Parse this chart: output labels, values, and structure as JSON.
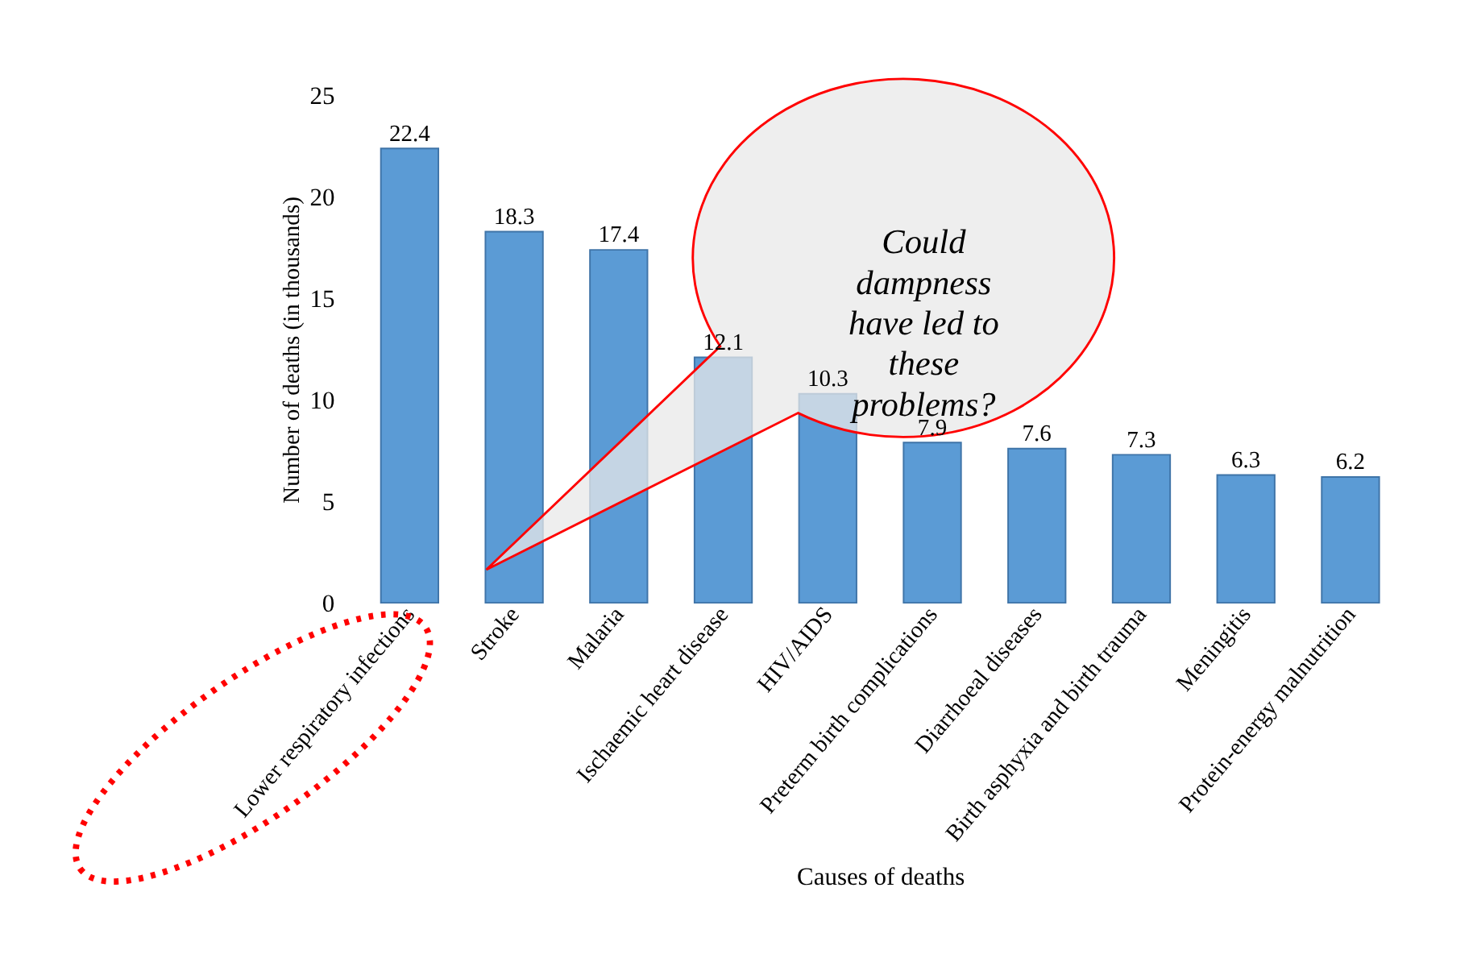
{
  "chart_data": {
    "type": "bar",
    "xlabel": "Causes of deaths",
    "ylabel": "Number of deaths (in thousands)",
    "categories": [
      "Lower respiratory infections",
      "Stroke",
      "Malaria",
      "Ischaemic heart disease",
      "HIV/AIDS",
      "Preterm birth complications",
      "Diarrhoeal diseases",
      "Birth asphyxia and birth trauma",
      "Meningitis",
      "Protein-energy malnutrition"
    ],
    "values": [
      22.4,
      18.3,
      17.4,
      12.1,
      10.3,
      7.9,
      7.6,
      7.3,
      6.3,
      6.2
    ],
    "color": "#5b9bd5",
    "ylim": [
      0,
      25
    ],
    "yticks": [
      0,
      5,
      10,
      15,
      20,
      25
    ],
    "grid": false,
    "data_labels": true,
    "annotations": [
      "Could dampness have led to these problems?"
    ]
  }
}
